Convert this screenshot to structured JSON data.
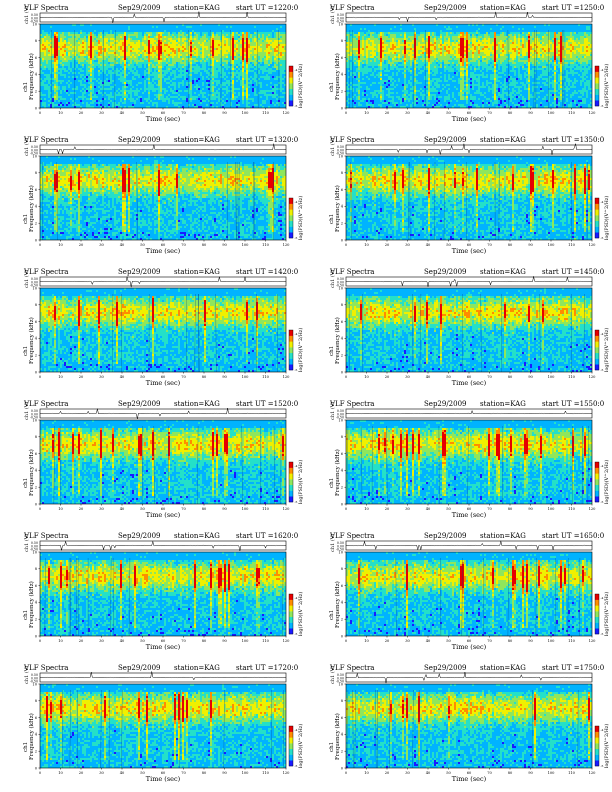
{
  "page_width": 612,
  "page_height": 792,
  "common": {
    "title_left": "VLF Spectra",
    "date": "Sep29/2009",
    "station": "station=KAG",
    "ch_axis_label": "ch1 (V)",
    "ch_axis_ticks": [
      "0.50",
      "0.00",
      "-0.50"
    ],
    "spec_label_line1": "ch1",
    "spec_label_line2": "Frequency (kHz)",
    "spec_y_ticks": [
      "0",
      "2",
      "4",
      "6",
      "8",
      "10"
    ],
    "x_ticks": [
      "0",
      "10",
      "20",
      "30",
      "40",
      "50",
      "60",
      "70",
      "80",
      "90",
      "100",
      "110",
      "120"
    ],
    "x_label": "Time (sec)",
    "colorbar_label": "log(PSD)(V^2/Hz)",
    "colorbar_ticks": [
      "-5",
      "-4"
    ]
  },
  "panels": [
    {
      "start_ut": "start UT =1220:0"
    },
    {
      "start_ut": "start UT =1250:0"
    },
    {
      "start_ut": "start UT =1320:0"
    },
    {
      "start_ut": "start UT =1350:0"
    },
    {
      "start_ut": "start UT =1420:0"
    },
    {
      "start_ut": "start UT =1450:0"
    },
    {
      "start_ut": "start UT =1520:0"
    },
    {
      "start_ut": "start UT =1550:0"
    },
    {
      "start_ut": "start UT =1620:0"
    },
    {
      "start_ut": "start UT =1650:0"
    },
    {
      "start_ut": "start UT =1720:0"
    },
    {
      "start_ut": "start UT =1750:0"
    }
  ],
  "chart_data": {
    "type": "heatmap",
    "x_range": [
      0,
      120
    ],
    "y_range_khz": [
      0,
      10
    ],
    "ch1_range_v": [
      -0.5,
      0.5
    ],
    "colormap": [
      "#1a1aff",
      "#00b3ff",
      "#24e0c8",
      "#8fe65c",
      "#f0f000",
      "#ff8c00",
      "#e60000"
    ],
    "panel_count": 12
  }
}
